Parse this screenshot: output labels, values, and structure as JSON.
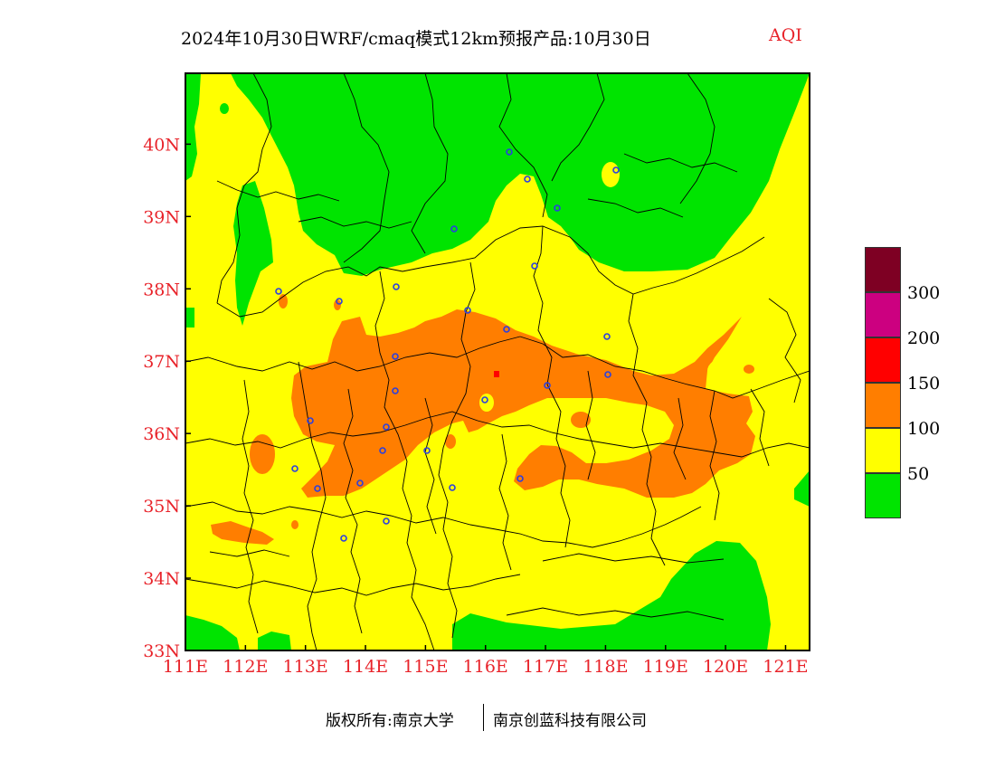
{
  "title": {
    "main": "2024年10月30日WRF/cmaq模式12km预报产品:10月30日",
    "aqi": "AQI"
  },
  "map": {
    "lon_ticks": [
      "111E",
      "112E",
      "113E",
      "114E",
      "115E",
      "116E",
      "117E",
      "118E",
      "119E",
      "120E",
      "121E"
    ],
    "lat_ticks": [
      "33N",
      "34N",
      "35N",
      "36N",
      "37N",
      "38N",
      "39N",
      "40N"
    ],
    "lon_range": [
      111,
      121.4
    ],
    "lat_range": [
      33,
      40.98
    ],
    "colors": {
      "good": "#00e400",
      "moderate": "#ffff00",
      "usg": "#ff7e00",
      "unhealthy": "#ff0000",
      "very_unhealthy": "#cc0080",
      "hazardous": "#7e0023",
      "station": "#2b3fe0"
    }
  },
  "legend": {
    "items": [
      {
        "label": "300",
        "color": "#7e0023"
      },
      {
        "label": "200",
        "color": "#cc0080"
      },
      {
        "label": "150",
        "color": "#ff0000"
      },
      {
        "label": "100",
        "color": "#ff7e00"
      },
      {
        "label": "50",
        "color": "#ffff00"
      },
      {
        "label": "",
        "color": "#00e400"
      }
    ]
  },
  "credits": {
    "left": "版权所有:南京大学",
    "right": "南京创蓝科技有限公司"
  }
}
